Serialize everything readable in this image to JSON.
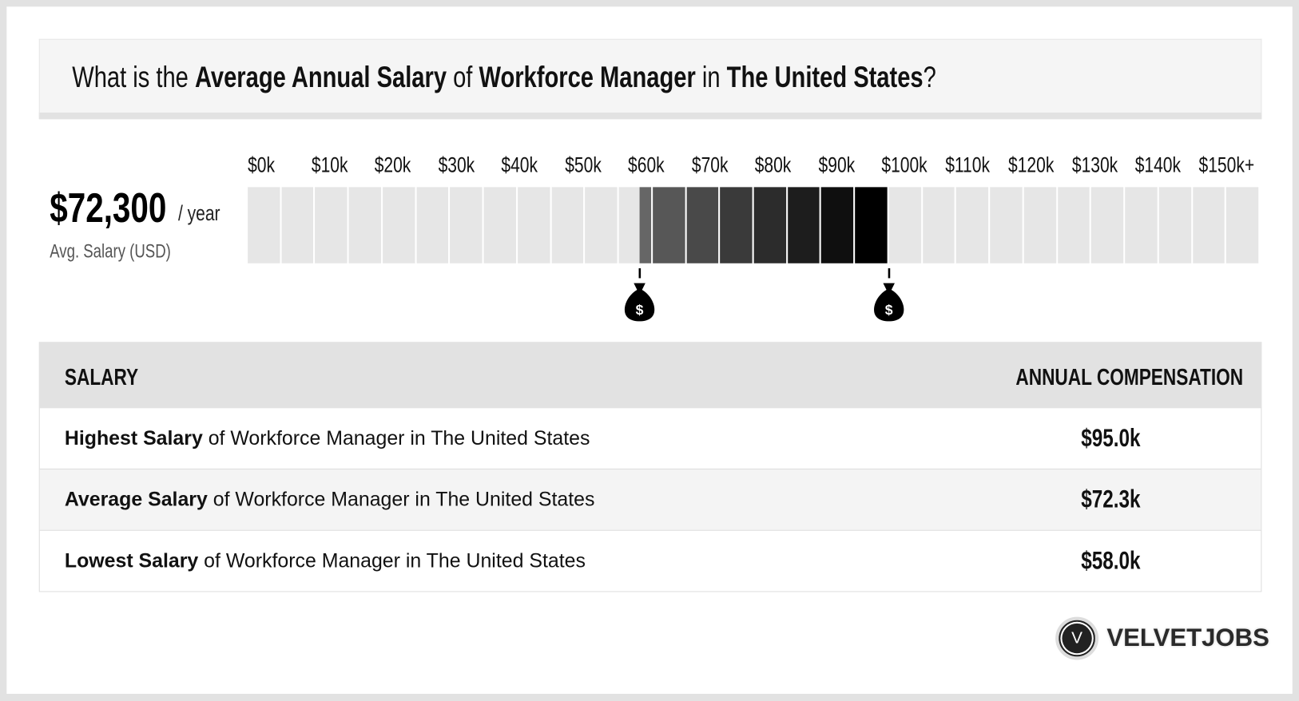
{
  "header": {
    "prefix": "What is the ",
    "metric": "Average Annual Salary",
    "of": " of ",
    "job": "Workforce Manager",
    "in": " in ",
    "location": "The United States",
    "suffix": "?"
  },
  "average": {
    "value": "$72,300",
    "unit": "/ year",
    "label": "Avg. Salary (USD)"
  },
  "chart_data": {
    "type": "range-bar",
    "tick_labels": [
      "$0k",
      "$10k",
      "$20k",
      "$30k",
      "$40k",
      "$50k",
      "$60k",
      "$70k",
      "$80k",
      "$90k",
      "$100k",
      "$110k",
      "$120k",
      "$130k",
      "$140k",
      "$150k+"
    ],
    "xlim": [
      0,
      150
    ],
    "segment_size": 5,
    "range": {
      "low": 58.0,
      "high": 95.0
    },
    "average": 72.3,
    "units": "thousand USD",
    "colors": {
      "empty": "#e6e6e6",
      "range_start": "#666666",
      "range_end": "#000000"
    }
  },
  "table": {
    "headers": [
      "SALARY",
      "ANNUAL COMPENSATION"
    ],
    "rows": [
      {
        "bold": "Highest Salary",
        "rest": " of Workforce Manager in The United States",
        "value": "$95.0k"
      },
      {
        "bold": "Average Salary",
        "rest": " of Workforce Manager in The United States",
        "value": "$72.3k"
      },
      {
        "bold": "Lowest Salary",
        "rest": " of Workforce Manager in The United States",
        "value": "$58.0k"
      }
    ]
  },
  "logo": {
    "mark": "V",
    "text": "VELVETJOBS"
  }
}
